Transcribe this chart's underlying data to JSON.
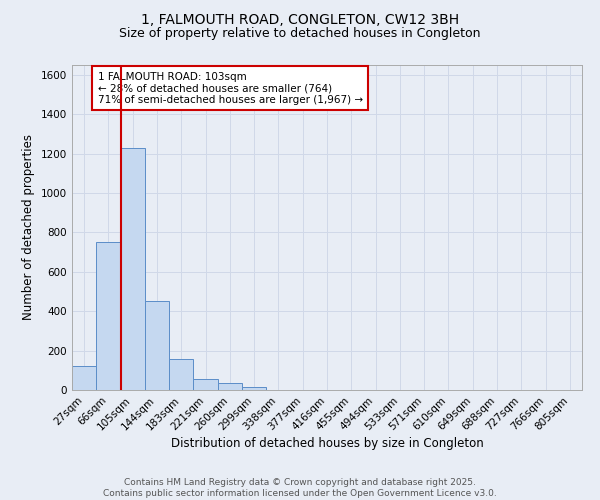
{
  "title": "1, FALMOUTH ROAD, CONGLETON, CW12 3BH",
  "subtitle": "Size of property relative to detached houses in Congleton",
  "xlabel": "Distribution of detached houses by size in Congleton",
  "ylabel": "Number of detached properties",
  "categories": [
    "27sqm",
    "66sqm",
    "105sqm",
    "144sqm",
    "183sqm",
    "221sqm",
    "260sqm",
    "299sqm",
    "338sqm",
    "377sqm",
    "416sqm",
    "455sqm",
    "494sqm",
    "533sqm",
    "571sqm",
    "610sqm",
    "649sqm",
    "688sqm",
    "727sqm",
    "766sqm",
    "805sqm"
  ],
  "values": [
    120,
    750,
    1230,
    450,
    155,
    55,
    35,
    15,
    0,
    0,
    0,
    0,
    0,
    0,
    0,
    0,
    0,
    0,
    0,
    0,
    0
  ],
  "bar_color": "#c5d8f0",
  "bar_edge_color": "#5b8dc8",
  "grid_color": "#d0d8e8",
  "background_color": "#e8edf5",
  "vline_color": "#cc0000",
  "annotation_text": "1 FALMOUTH ROAD: 103sqm\n← 28% of detached houses are smaller (764)\n71% of semi-detached houses are larger (1,967) →",
  "annotation_box_facecolor": "#ffffff",
  "annotation_box_edgecolor": "#cc0000",
  "ylim": [
    0,
    1650
  ],
  "yticks": [
    0,
    200,
    400,
    600,
    800,
    1000,
    1200,
    1400,
    1600
  ],
  "footer_text": "Contains HM Land Registry data © Crown copyright and database right 2025.\nContains public sector information licensed under the Open Government Licence v3.0.",
  "title_fontsize": 10,
  "subtitle_fontsize": 9,
  "axis_label_fontsize": 8.5,
  "tick_fontsize": 7.5,
  "annotation_fontsize": 7.5,
  "footer_fontsize": 6.5
}
